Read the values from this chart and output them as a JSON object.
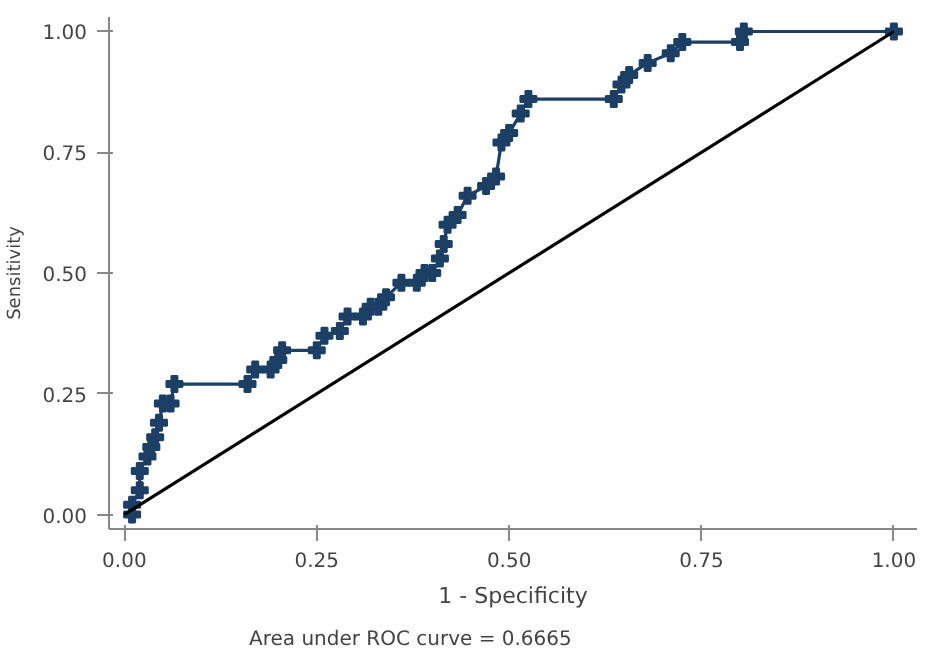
{
  "chart_data": {
    "type": "line",
    "xlabel": "1 - Specificity",
    "ylabel": "Sensitivity",
    "annotations": [
      "Area under ROC curve = 0.6665"
    ],
    "xlim": [
      -0.02,
      1.03
    ],
    "ylim": [
      -0.03,
      1.03
    ],
    "xticks": [
      {
        "value": 0,
        "label": "0.00"
      },
      0.25,
      {
        "value": 0.5,
        "label": "0.50"
      },
      0.75,
      {
        "value": 1,
        "label": "1.00"
      }
    ],
    "yticks": [
      {
        "value": 0,
        "label": "0.00"
      },
      0.25,
      {
        "value": 0.5,
        "label": "0.50"
      },
      0.75,
      {
        "value": 1,
        "label": "1.00"
      }
    ],
    "grid": false,
    "series": [
      {
        "color": "#1c3f66",
        "marker": "cross",
        "x": [
          0.01,
          0.01,
          0.02,
          0.02,
          0.03,
          0.035,
          0.04,
          0.045,
          0.05,
          0.06,
          0.065,
          0.16,
          0.17,
          0.19,
          0.2,
          0.205,
          0.25,
          0.26,
          0.28,
          0.29,
          0.31,
          0.32,
          0.33,
          0.34,
          0.36,
          0.38,
          0.39,
          0.4,
          0.41,
          0.415,
          0.42,
          0.433,
          0.446,
          0.47,
          0.483,
          0.49,
          0.5,
          0.515,
          0.525,
          0.636,
          0.646,
          0.656,
          0.68,
          0.71,
          0.725,
          0.8,
          0.805,
          1.0
        ],
        "values": [
          0,
          0.02,
          0.05,
          0.09,
          0.12,
          0.14,
          0.16,
          0.19,
          0.23,
          0.23,
          0.27,
          0.27,
          0.3,
          0.3,
          0.32,
          0.34,
          0.34,
          0.37,
          0.38,
          0.41,
          0.41,
          0.43,
          0.43,
          0.45,
          0.48,
          0.48,
          0.5,
          0.5,
          0.53,
          0.56,
          0.6,
          0.62,
          0.66,
          0.68,
          0.7,
          0.77,
          0.79,
          0.83,
          0.86,
          0.86,
          0.89,
          0.91,
          0.935,
          0.955,
          0.978,
          0.978,
          1.0,
          1.0
        ]
      },
      {
        "color": "#000000",
        "marker": "none",
        "x": [
          0,
          1
        ],
        "values": [
          0,
          1
        ]
      }
    ]
  }
}
